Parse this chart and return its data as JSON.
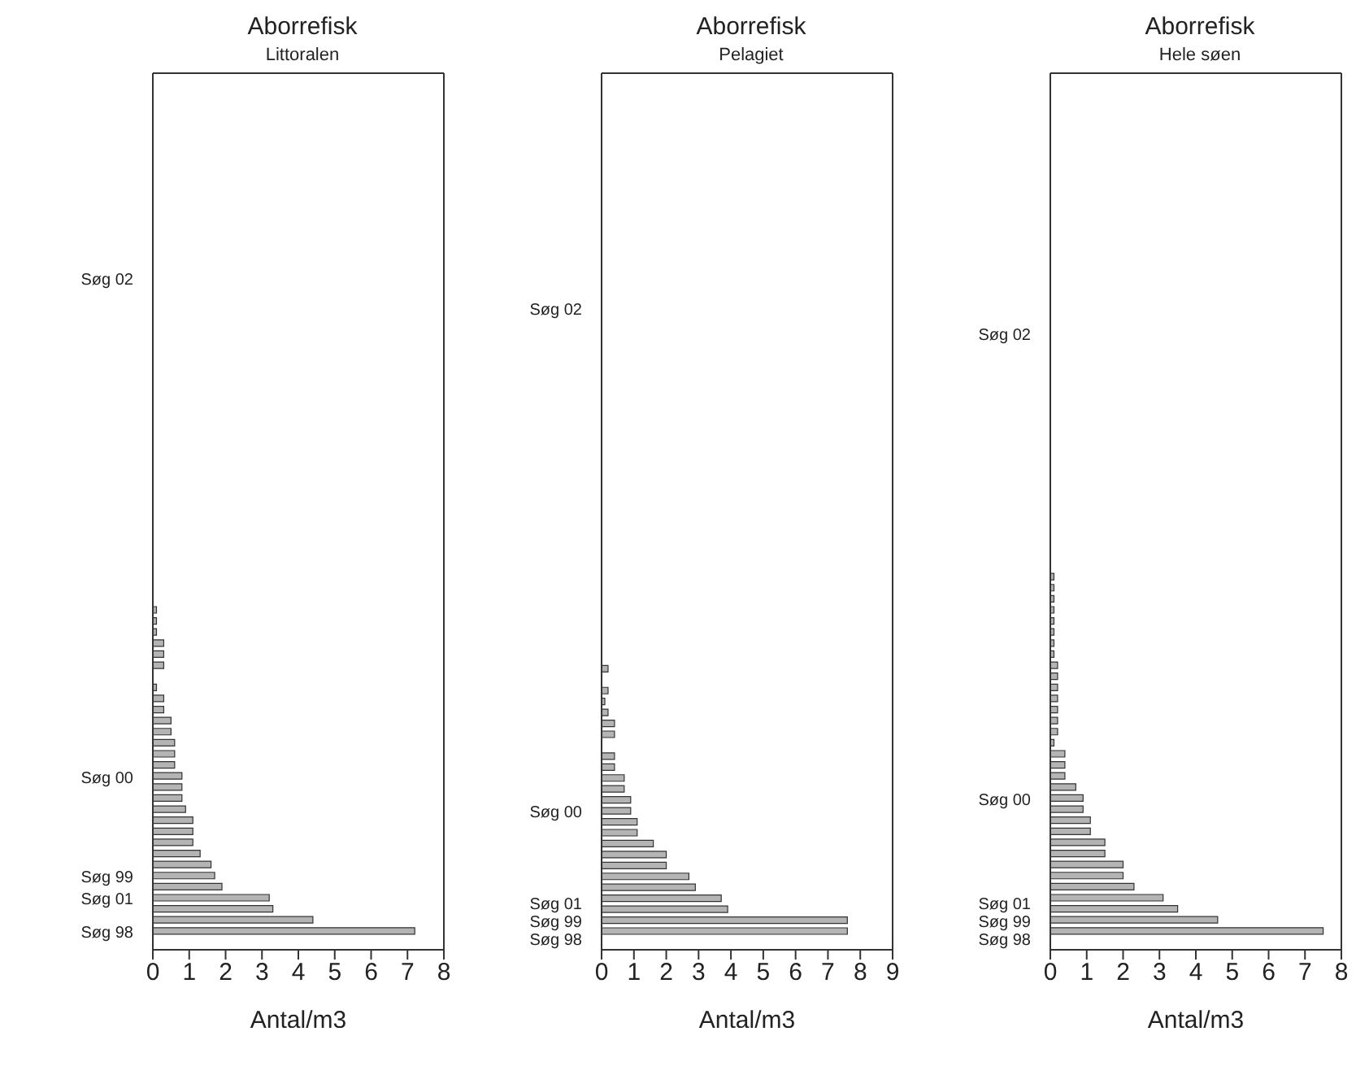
{
  "chart_data": [
    {
      "type": "bar",
      "orientation": "horizontal",
      "title": "Aborrefisk",
      "subtitle": "Littoralen",
      "xlabel": "Antal/m3",
      "color": "#b4b4b4",
      "xlim": [
        0,
        8
      ],
      "xticks": [
        0,
        1,
        2,
        3,
        4,
        5,
        6,
        7,
        8
      ],
      "categories": [
        null,
        null,
        null,
        null,
        null,
        null,
        null,
        null,
        null,
        null,
        null,
        null,
        null,
        null,
        null,
        null,
        null,
        null,
        "Søg 02",
        null,
        null,
        null,
        null,
        null,
        null,
        null,
        null,
        null,
        null,
        null,
        null,
        null,
        null,
        null,
        null,
        null,
        null,
        null,
        null,
        null,
        null,
        null,
        null,
        null,
        null,
        null,
        null,
        null,
        null,
        null,
        null,
        null,
        null,
        null,
        null,
        null,
        null,
        null,
        null,
        null,
        null,
        null,
        null,
        "Søg 00",
        null,
        null,
        null,
        null,
        null,
        null,
        null,
        null,
        "Søg 99",
        null,
        "Søg 01",
        null,
        null,
        "Søg 98"
      ],
      "values": [
        0,
        0,
        0,
        0,
        0,
        0,
        0,
        0,
        0,
        0,
        0,
        0,
        0,
        0,
        0,
        0,
        0,
        0,
        0,
        0,
        0,
        0,
        0,
        0,
        0,
        0,
        0,
        0,
        0,
        0,
        0,
        0,
        0,
        0,
        0,
        0,
        0,
        0,
        0,
        0,
        0,
        0,
        0,
        0,
        0,
        0,
        0,
        0,
        0.1,
        0.1,
        0.1,
        0.3,
        0.3,
        0.3,
        0,
        0.1,
        0.3,
        0.3,
        0.5,
        0.5,
        0.6,
        0.6,
        0.6,
        0.8,
        0.8,
        0.8,
        0.9,
        1.1,
        1.1,
        1.1,
        1.3,
        1.6,
        1.7,
        1.9,
        3.2,
        3.3,
        4.4,
        7.2
      ]
    },
    {
      "type": "bar",
      "orientation": "horizontal",
      "title": "Aborrefisk",
      "subtitle": "Pelagiet",
      "xlabel": "Antal/m3",
      "color": "#b4b4b4",
      "xlim": [
        0,
        9
      ],
      "xticks": [
        0,
        1,
        2,
        3,
        4,
        5,
        6,
        7,
        8,
        9
      ],
      "categories": [
        null,
        null,
        null,
        null,
        null,
        null,
        null,
        null,
        null,
        null,
        null,
        null,
        null,
        null,
        null,
        null,
        null,
        null,
        null,
        null,
        null,
        "Søg 02",
        null,
        null,
        null,
        null,
        null,
        null,
        null,
        null,
        null,
        null,
        null,
        null,
        null,
        null,
        null,
        null,
        null,
        null,
        null,
        null,
        null,
        null,
        null,
        null,
        null,
        null,
        null,
        null,
        null,
        null,
        null,
        null,
        null,
        null,
        null,
        null,
        null,
        null,
        null,
        null,
        null,
        null,
        null,
        null,
        null,
        "Søg 00",
        null,
        null,
        null,
        null,
        null,
        null,
        null,
        null,
        "Søg 01",
        "Søg 99",
        "Søg 98"
      ],
      "values": [
        0,
        0,
        0,
        0,
        0,
        0,
        0,
        0,
        0,
        0,
        0,
        0,
        0,
        0,
        0,
        0,
        0,
        0,
        0,
        0,
        0,
        0,
        0,
        0,
        0,
        0,
        0,
        0,
        0,
        0,
        0,
        0,
        0,
        0,
        0,
        0,
        0,
        0,
        0,
        0,
        0,
        0,
        0,
        0,
        0,
        0,
        0,
        0,
        0,
        0,
        0,
        0,
        0,
        0,
        0.2,
        0,
        0.2,
        0.1,
        0.2,
        0.4,
        0.4,
        0,
        0.4,
        0.4,
        0.7,
        0.7,
        0.9,
        0.9,
        1.1,
        1.1,
        1.6,
        2.0,
        2.0,
        2.7,
        2.9,
        3.7,
        3.9,
        7.6,
        7.6
      ]
    },
    {
      "type": "bar",
      "orientation": "horizontal",
      "title": "Aborrefisk",
      "subtitle": "Hele søen",
      "xlabel": "Antal/m3",
      "color": "#b4b4b4",
      "xlim": [
        0,
        8
      ],
      "xticks": [
        0,
        1,
        2,
        3,
        4,
        5,
        6,
        7,
        8
      ],
      "categories": [
        null,
        null,
        null,
        null,
        null,
        null,
        null,
        null,
        null,
        null,
        null,
        null,
        null,
        null,
        null,
        null,
        null,
        null,
        null,
        null,
        null,
        null,
        null,
        "Søg 02",
        null,
        null,
        null,
        null,
        null,
        null,
        null,
        null,
        null,
        null,
        null,
        null,
        null,
        null,
        null,
        null,
        null,
        null,
        null,
        null,
        null,
        null,
        null,
        null,
        null,
        null,
        null,
        null,
        null,
        null,
        null,
        null,
        null,
        null,
        null,
        null,
        null,
        null,
        null,
        null,
        null,
        "Søg 00",
        null,
        null,
        null,
        null,
        null,
        null,
        null,
        null,
        null,
        "Søg 01",
        "Søg 99",
        "Søg 98"
      ],
      "values": [
        0,
        0,
        0,
        0,
        0,
        0,
        0,
        0,
        0,
        0,
        0,
        0,
        0,
        0,
        0,
        0,
        0,
        0,
        0,
        0,
        0,
        0,
        0,
        0,
        0,
        0,
        0,
        0,
        0,
        0,
        0,
        0,
        0,
        0,
        0,
        0,
        0,
        0,
        0,
        0,
        0,
        0,
        0,
        0,
        0,
        0.1,
        0.1,
        0.1,
        0.1,
        0.1,
        0.1,
        0.1,
        0.1,
        0.2,
        0.2,
        0.2,
        0.2,
        0.2,
        0.2,
        0.2,
        0.1,
        0.4,
        0.4,
        0.4,
        0.7,
        0.9,
        0.9,
        1.1,
        1.1,
        1.5,
        1.5,
        2.0,
        2.0,
        2.3,
        3.1,
        3.5,
        4.6,
        7.5
      ]
    }
  ]
}
